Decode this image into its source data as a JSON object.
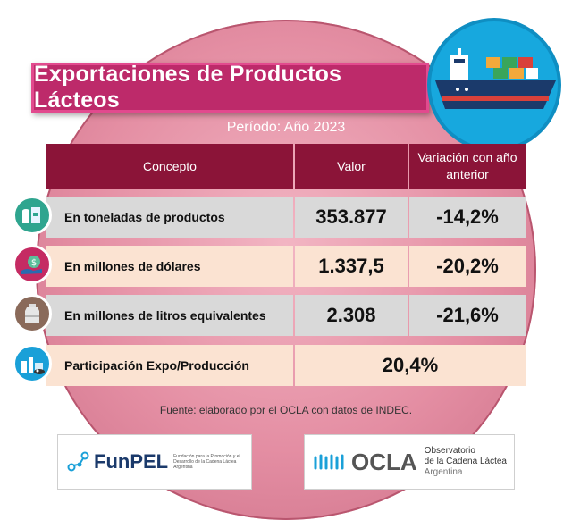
{
  "title": "Exportaciones de Productos Lácteos",
  "period": "Período: Año 2023",
  "table": {
    "headers": [
      "Concepto",
      "Valor",
      "Variación con año anterior"
    ],
    "rows": [
      {
        "concept": "En toneladas de productos",
        "value": "353.877",
        "variation": "-14,2%",
        "icon": "dairy-products-icon",
        "icon_color": "#2fa58f"
      },
      {
        "concept": "En millones de dólares",
        "value": "1.337,5",
        "variation": "-20,2%",
        "icon": "money-hand-icon",
        "icon_color": "#c52b63"
      },
      {
        "concept": "En millones de litros equivalentes",
        "value": "2.308",
        "variation": "-21,6%",
        "icon": "milk-can-icon",
        "icon_color": "#8a6a5a"
      },
      {
        "concept": "Participación Expo/Producción",
        "value": "20,4%",
        "icon": "factory-icon",
        "icon_color": "#1aa0d8"
      }
    ]
  },
  "source": "Fuente: elaborado por el OCLA con datos de INDEC.",
  "logos": {
    "funpel": {
      "name": "FunPEL",
      "tagline": "Fundación para la Promoción y el Desarrollo de la Cadena Láctea Argentina"
    },
    "ocla": {
      "name": "OCLA",
      "line1": "Observatorio",
      "line2": "de la Cadena Láctea",
      "line3": "Argentina"
    }
  },
  "colors": {
    "header": "#8b1438",
    "title_bg": "#bd2a6a",
    "row_gray": "#d9d9d9",
    "row_peach": "#fbe3d2"
  }
}
